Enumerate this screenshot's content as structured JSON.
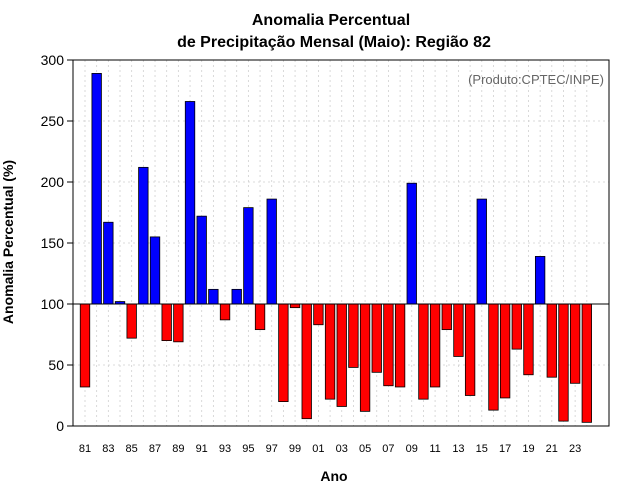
{
  "chart_data": {
    "type": "bar",
    "title_line1": "Anomalia Percentual",
    "title_line2": "de Precipitação Mensal (Maio): Região 82",
    "source_note": "(Produto:CPTEC/INPE)",
    "xlabel": "Ano",
    "ylabel": "Anomalia Percentual (%)",
    "ylim": [
      0,
      300
    ],
    "yticks": [
      0,
      50,
      100,
      150,
      200,
      250,
      300
    ],
    "baseline": 100,
    "grid": true,
    "colors": {
      "above": "#0000ff",
      "below": "#ff0000",
      "edge": "#000000",
      "grid": "#d0d0d0"
    },
    "categories": [
      "81",
      "82",
      "83",
      "84",
      "85",
      "86",
      "87",
      "88",
      "89",
      "90",
      "91",
      "92",
      "93",
      "94",
      "95",
      "96",
      "97",
      "98",
      "99",
      "00",
      "01",
      "02",
      "03",
      "04",
      "05",
      "06",
      "07",
      "08",
      "09",
      "10",
      "11",
      "12",
      "13",
      "14",
      "15",
      "16",
      "17",
      "18",
      "19",
      "20",
      "21",
      "22",
      "23",
      "24"
    ],
    "tick_labels": [
      "81",
      "83",
      "85",
      "87",
      "89",
      "91",
      "93",
      "95",
      "97",
      "99",
      "01",
      "03",
      "05",
      "07",
      "09",
      "11",
      "13",
      "15",
      "17",
      "19",
      "21",
      "23"
    ],
    "values": [
      32,
      289,
      167,
      102,
      72,
      212,
      155,
      70,
      69,
      266,
      172,
      112,
      87,
      112,
      179,
      79,
      186,
      20,
      97,
      6,
      83,
      22,
      16,
      48,
      12,
      44,
      33,
      32,
      199,
      22,
      32,
      79,
      57,
      25,
      186,
      13,
      23,
      63,
      42,
      139,
      40,
      4,
      35,
      3
    ]
  }
}
